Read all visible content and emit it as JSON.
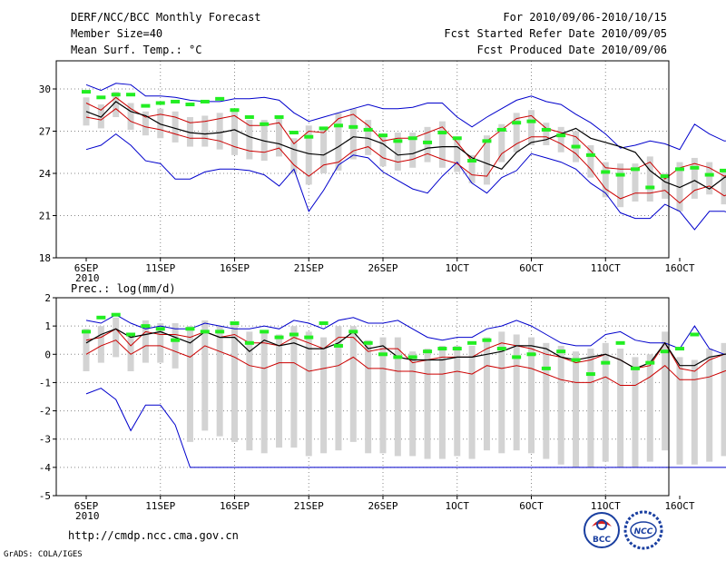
{
  "header": {
    "title_left": "DERF/NCC/BCC Monthly Forecast",
    "member_size": "Member Size=40",
    "variable": "Mean Surf. Temp.: °C",
    "period": "For 2010/09/06-2010/10/15",
    "started": "Fcst Started Refer Date 2010/09/05",
    "produced": "Fcst Produced Date 2010/09/06"
  },
  "footer": {
    "url": "http://cmdp.ncc.cma.gov.cn",
    "grads": "GrADS: COLA/IGES",
    "logo_bcc": "BCC",
    "logo_ncc": "NCC"
  },
  "colors": {
    "bar": "#d3d3d3",
    "obs": "#22ee22",
    "mean": "#000000",
    "spread": "#cc0000",
    "envelope": "#0000cc",
    "grid": "#888888"
  },
  "chart_data": [
    {
      "type": "line",
      "panel": "temperature",
      "title": "Mean Surf. Temp.: °C",
      "x_labels": [
        "6SEP",
        "11SEP",
        "16SEP",
        "21SEP",
        "26SEP",
        "1OCT",
        "6OCT",
        "11OCT",
        "16OCT"
      ],
      "x_sublabel": "2010",
      "days": 40,
      "ylim": [
        18,
        32
      ],
      "yticks": [
        18,
        21,
        24,
        27,
        30
      ],
      "series": [
        {
          "name": "max",
          "values": [
            25.7,
            26.0,
            26.8,
            26.0,
            24.9,
            24.7,
            23.6,
            23.6,
            24.1,
            24.3,
            24.3,
            24.2,
            23.9,
            23.1,
            24.3,
            21.3,
            22.8,
            24.6,
            25.3,
            25.1,
            24.1,
            23.5,
            22.9,
            22.6,
            23.8,
            24.8,
            23.3,
            22.6,
            23.7,
            24.2,
            25.4,
            25.1,
            24.8,
            24.3,
            23.3,
            22.6,
            21.2,
            20.8,
            20.8,
            21.8,
            21.3,
            20.0,
            21.3,
            21.3,
            21.0,
            20.8,
            21.8,
            21.1,
            20.3
          ]
        },
        {
          "name": "p_high",
          "values": [
            29.0,
            28.5,
            29.4,
            28.6,
            28.0,
            28.2,
            28.0,
            27.6,
            27.7,
            27.9,
            28.1,
            27.4,
            27.4,
            27.6,
            26.1,
            27.0,
            26.9,
            27.9,
            28.2,
            27.4,
            26.3,
            26.5,
            26.5,
            26.9,
            27.3,
            26.2,
            24.9,
            26.3,
            27.1,
            27.9,
            28.1,
            27.2,
            26.9,
            26.6,
            25.6,
            24.4,
            24.3,
            24.3,
            24.8,
            23.6,
            24.4,
            24.7,
            24.4,
            23.8,
            24.1,
            24.5,
            24.1,
            23.6,
            23.3
          ]
        },
        {
          "name": "mean",
          "values": [
            28.4,
            28.0,
            29.1,
            28.4,
            28.1,
            27.5,
            27.2,
            26.9,
            26.8,
            26.9,
            27.1,
            26.6,
            26.3,
            26.1,
            25.7,
            25.4,
            25.3,
            25.9,
            26.6,
            26.5,
            26.1,
            25.3,
            25.4,
            25.8,
            25.9,
            25.9,
            25.1,
            24.7,
            24.3,
            25.5,
            26.2,
            26.4,
            26.8,
            27.2,
            26.5,
            26.2,
            25.9,
            25.5,
            24.2,
            23.4,
            23.0,
            23.5,
            22.9,
            23.7,
            24.2,
            23.8,
            23.2,
            23.9,
            23.6,
            23.1
          ]
        },
        {
          "name": "p_low",
          "values": [
            28.0,
            27.8,
            28.6,
            27.7,
            27.3,
            27.1,
            26.8,
            26.5,
            26.5,
            26.3,
            25.9,
            25.6,
            25.5,
            25.8,
            24.6,
            23.8,
            24.6,
            24.8,
            25.6,
            25.9,
            25.1,
            24.8,
            25.0,
            25.4,
            25.0,
            24.7,
            23.9,
            23.8,
            25.4,
            26.1,
            26.6,
            26.6,
            26.1,
            25.4,
            24.3,
            22.9,
            22.2,
            22.6,
            22.6,
            22.8,
            21.9,
            22.8,
            23.1,
            22.4,
            22.9,
            22.6,
            23.0,
            22.1,
            22.3
          ]
        },
        {
          "name": "min",
          "values": [
            30.3,
            29.9,
            30.4,
            30.3,
            29.5,
            29.5,
            29.4,
            29.2,
            29.1,
            29.1,
            29.3,
            29.3,
            29.4,
            29.2,
            28.3,
            27.7,
            28.0,
            28.3,
            28.6,
            28.9,
            28.6,
            28.6,
            28.7,
            29.0,
            29.0,
            28.0,
            27.3,
            28.0,
            28.6,
            29.2,
            29.5,
            29.1,
            28.9,
            28.2,
            27.6,
            26.8,
            25.8,
            26.0,
            26.3,
            26.1,
            25.7,
            27.5,
            26.8,
            26.3,
            26.4,
            26.2,
            26.5,
            26.1,
            25.5
          ]
        },
        {
          "name": "obs",
          "values": [
            29.8,
            29.4,
            29.6,
            29.6,
            28.8,
            29.0,
            29.1,
            28.9,
            29.1,
            29.3,
            28.5,
            28.0,
            27.5,
            28.0,
            26.9,
            26.6,
            27.2,
            27.4,
            27.3,
            27.1,
            26.7,
            26.3,
            26.5,
            26.2,
            26.9,
            26.5,
            24.9,
            26.3,
            27.1,
            27.6,
            27.7,
            27.1,
            26.7,
            25.9,
            25.3,
            24.1,
            23.9,
            24.3,
            23.0,
            23.8,
            24.3,
            24.4,
            23.9,
            24.2,
            24.1,
            23.6
          ]
        }
      ]
    },
    {
      "type": "line",
      "panel": "precipitation",
      "title": "Prec.: log(mm/d)",
      "x_labels": [
        "6SEP",
        "11SEP",
        "16SEP",
        "21SEP",
        "26SEP",
        "1OCT",
        "6OCT",
        "11OCT",
        "16OCT"
      ],
      "x_sublabel": "2010",
      "days": 40,
      "ylim": [
        -5,
        2
      ],
      "yticks": [
        -5,
        -4,
        -3,
        -2,
        -1,
        0,
        1,
        2
      ],
      "series": [
        {
          "name": "max",
          "values": [
            1.2,
            1.1,
            1.4,
            1.1,
            0.9,
            1.0,
            0.9,
            0.9,
            1.1,
            1.0,
            0.9,
            0.9,
            1.0,
            0.9,
            1.2,
            1.1,
            0.9,
            1.2,
            1.3,
            1.1,
            1.1,
            1.2,
            0.9,
            0.6,
            0.5,
            0.6,
            0.6,
            0.9,
            1.0,
            1.2,
            1.0,
            0.7,
            0.4,
            0.3,
            0.3,
            0.7,
            0.8,
            0.5,
            0.4,
            0.4,
            0.2,
            1.0,
            0.2,
            0.0,
            0.0,
            0.4,
            0.6,
            1.4
          ]
        },
        {
          "name": "p_high",
          "values": [
            0.5,
            0.6,
            0.9,
            0.3,
            0.8,
            0.7,
            0.7,
            0.6,
            0.8,
            0.6,
            0.7,
            0.4,
            0.4,
            0.3,
            0.6,
            0.4,
            0.2,
            0.6,
            0.6,
            0.1,
            0.2,
            0.2,
            -0.3,
            -0.2,
            -0.1,
            -0.1,
            -0.1,
            0.2,
            0.4,
            0.3,
            0.2,
            0.0,
            -0.1,
            -0.3,
            -0.2,
            0.0,
            -0.2,
            -0.5,
            -0.4,
            0.4,
            -0.5,
            -0.6,
            -0.2,
            0.0,
            0.1,
            0.3,
            0.5,
            0.7
          ]
        },
        {
          "name": "mean",
          "values": [
            0.4,
            0.7,
            0.9,
            0.6,
            0.7,
            0.8,
            0.6,
            0.4,
            0.8,
            0.6,
            0.6,
            0.1,
            0.5,
            0.3,
            0.4,
            0.2,
            0.2,
            0.4,
            0.8,
            0.2,
            0.3,
            -0.1,
            -0.2,
            -0.2,
            -0.2,
            -0.1,
            -0.1,
            0.0,
            0.1,
            0.3,
            0.3,
            0.2,
            -0.1,
            -0.2,
            -0.1,
            0.0,
            -0.2,
            -0.5,
            -0.3,
            0.4,
            -0.4,
            -0.4,
            -0.1,
            0.0,
            0.1,
            0.2,
            0.5
          ]
        },
        {
          "name": "p_low",
          "values": [
            0.0,
            0.3,
            0.5,
            0.0,
            0.3,
            0.3,
            0.1,
            -0.1,
            0.3,
            0.1,
            -0.1,
            -0.4,
            -0.5,
            -0.3,
            -0.3,
            -0.6,
            -0.5,
            -0.4,
            -0.1,
            -0.5,
            -0.5,
            -0.6,
            -0.6,
            -0.7,
            -0.7,
            -0.6,
            -0.7,
            -0.4,
            -0.5,
            -0.4,
            -0.5,
            -0.7,
            -0.9,
            -1.0,
            -1.0,
            -0.8,
            -1.1,
            -1.1,
            -0.8,
            -0.4,
            -0.9,
            -0.9,
            -0.8,
            -0.6,
            -0.4,
            -0.1,
            0.1
          ]
        },
        {
          "name": "min",
          "values": [
            -1.4,
            -1.2,
            -1.6,
            -2.7,
            -1.8,
            -1.8,
            -2.5,
            -4.0,
            -4.0,
            -4.0,
            -4.0,
            -4.0,
            -4.0,
            -4.0,
            -4.0,
            -4.0,
            -4.0,
            -4.0,
            -4.0,
            -4.0,
            -4.0,
            -4.0,
            -4.0,
            -4.0,
            -4.0,
            -4.0,
            -4.0,
            -4.0,
            -4.0,
            -4.0,
            -4.0,
            -4.0,
            -4.0,
            -4.0,
            -4.0,
            -4.0,
            -4.0,
            -4.0,
            -4.0,
            -4.0,
            -4.0,
            -4.0,
            -4.0,
            -4.0,
            -4.0,
            -4.0,
            -4.0,
            -4.0
          ]
        },
        {
          "name": "obs",
          "values": [
            0.8,
            1.3,
            1.4,
            0.7,
            1.0,
            0.9,
            0.5,
            0.9,
            0.8,
            0.8,
            1.1,
            0.4,
            0.8,
            0.6,
            0.7,
            0.6,
            1.1,
            0.3,
            0.8,
            0.4,
            0.0,
            -0.1,
            -0.1,
            0.1,
            0.2,
            0.2,
            0.4,
            0.5,
            0.2,
            -0.1,
            0.0,
            -0.5,
            0.1,
            -0.2,
            -0.7,
            -0.3,
            0.4,
            -0.5,
            -0.3,
            0.1,
            0.2,
            0.7
          ]
        }
      ]
    }
  ]
}
